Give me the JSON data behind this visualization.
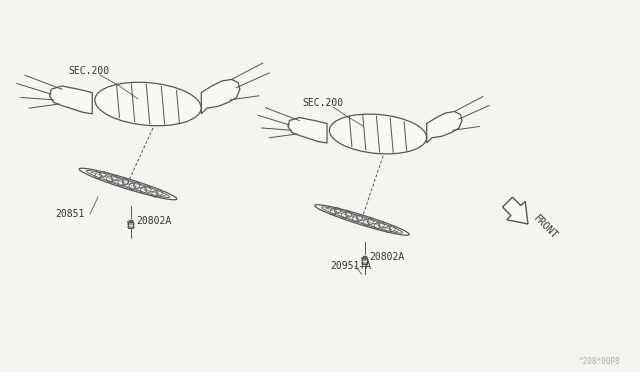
{
  "bg_color": "#f5f5f0",
  "line_color": "#555555",
  "label_color": "#333333",
  "watermark": "^208*00P8",
  "labels": {
    "sec200_left": "SEC.200",
    "sec200_right": "SEC.200",
    "part_20802A_left": "20802A",
    "part_20851": "20851",
    "part_20802A_right": "20802A",
    "part_20851A": "20951+A",
    "front_label": "FRONT"
  },
  "fig_width": 6.4,
  "fig_height": 3.72,
  "dpi": 100
}
